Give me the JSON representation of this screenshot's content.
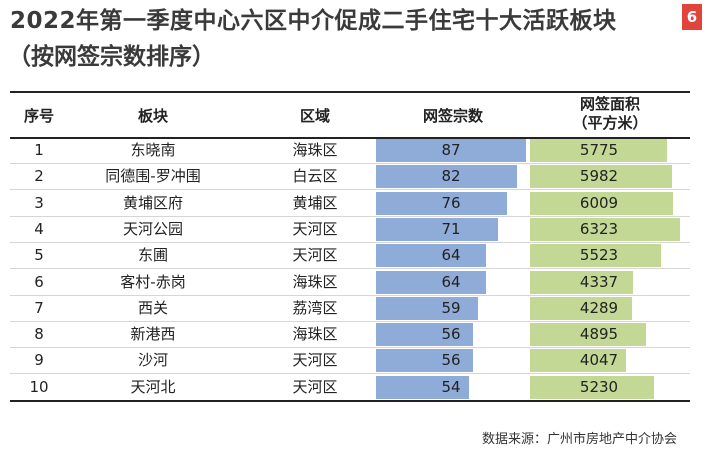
{
  "title": "2022年第一季度中心六区中介促成二手住宅十大活跃板块",
  "subtitle": "（按网签宗数排序）",
  "page_number": "6",
  "headers": {
    "rank": "序号",
    "block": "板块",
    "district": "区域",
    "count": "网签宗数",
    "area_line1": "网签面积",
    "area_line2": "（平方米）"
  },
  "source": "数据来源：广州市房地产中介协会",
  "colors": {
    "count_bar": "#8fabd7",
    "area_bar": "#c3d895",
    "badge": "#e0443b"
  },
  "chart_data": {
    "type": "table",
    "columns": [
      "序号",
      "板块",
      "区域",
      "网签宗数",
      "网签面积（平方米）"
    ],
    "rows": [
      {
        "rank": "1",
        "block": "东晓南",
        "district": "海珠区",
        "count": 87,
        "area": 5775
      },
      {
        "rank": "2",
        "block": "同德围-罗冲围",
        "district": "白云区",
        "count": 82,
        "area": 5982
      },
      {
        "rank": "3",
        "block": "黄埔区府",
        "district": "黄埔区",
        "count": 76,
        "area": 6009
      },
      {
        "rank": "4",
        "block": "天河公园",
        "district": "天河区",
        "count": 71,
        "area": 6323
      },
      {
        "rank": "5",
        "block": "东圃",
        "district": "天河区",
        "count": 64,
        "area": 5523
      },
      {
        "rank": "6",
        "block": "客村-赤岗",
        "district": "海珠区",
        "count": 64,
        "area": 4337
      },
      {
        "rank": "7",
        "block": "西关",
        "district": "荔湾区",
        "count": 59,
        "area": 4289
      },
      {
        "rank": "8",
        "block": "新港西",
        "district": "海珠区",
        "count": 56,
        "area": 4895
      },
      {
        "rank": "9",
        "block": "沙河",
        "district": "天河区",
        "count": 56,
        "area": 4047
      },
      {
        "rank": "10",
        "block": "天河北",
        "district": "天河区",
        "count": 54,
        "area": 5230
      }
    ]
  }
}
